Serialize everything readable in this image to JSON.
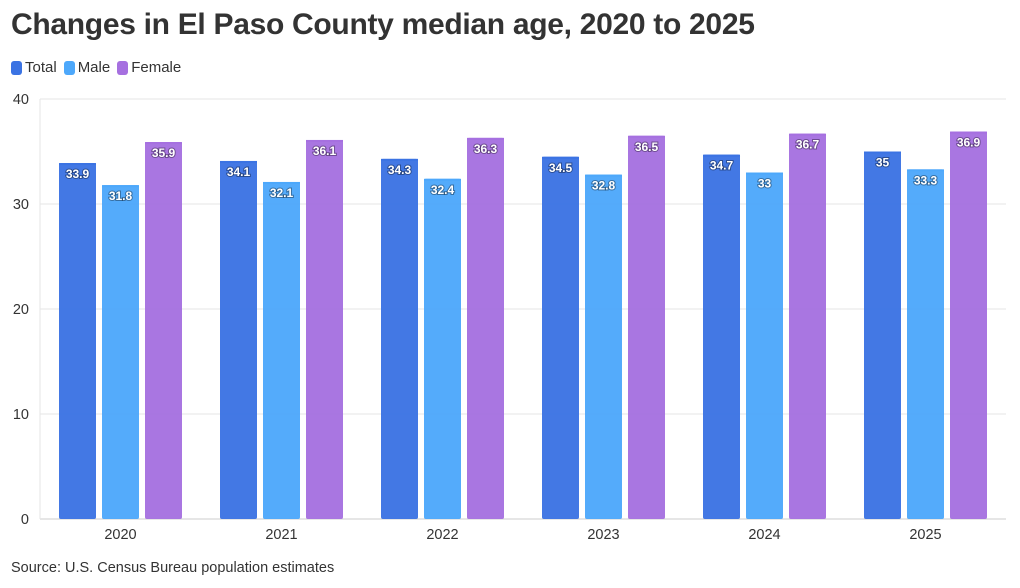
{
  "header": {
    "title": "Changes in El Paso County median age, 2020 to 2025"
  },
  "footer": {
    "source": "Source: U.S. Census Bureau population estimates"
  },
  "colors": {
    "Total": "#3b73e3",
    "Male": "#4da8fb",
    "Female": "#a670e0",
    "grid": "#e6e6e6",
    "axis": "#cccccc",
    "text": "#333333"
  },
  "chart_data": {
    "type": "bar",
    "title": "Changes in El Paso County median age, 2020 to 2025",
    "xlabel": "",
    "ylabel": "",
    "categories": [
      "2020",
      "2021",
      "2022",
      "2023",
      "2024",
      "2025"
    ],
    "series": [
      {
        "name": "Total",
        "values": [
          33.9,
          34.1,
          34.3,
          34.5,
          34.7,
          35
        ],
        "labels": [
          "33.9",
          "34.1",
          "34.3",
          "34.5",
          "34.7",
          "35"
        ]
      },
      {
        "name": "Male",
        "values": [
          31.8,
          32.1,
          32.4,
          32.8,
          33,
          33.3
        ],
        "labels": [
          "31.8",
          "32.1",
          "32.4",
          "32.8",
          "33",
          "33.3"
        ]
      },
      {
        "name": "Female",
        "values": [
          35.9,
          36.1,
          36.3,
          36.5,
          36.7,
          36.9
        ],
        "labels": [
          "35.9",
          "36.1",
          "36.3",
          "36.5",
          "36.7",
          "36.9"
        ]
      }
    ],
    "ylim": [
      0,
      40
    ],
    "yticks": [
      "0",
      "10",
      "20",
      "30",
      "40"
    ],
    "grid": true,
    "legend_position": "top-left"
  }
}
